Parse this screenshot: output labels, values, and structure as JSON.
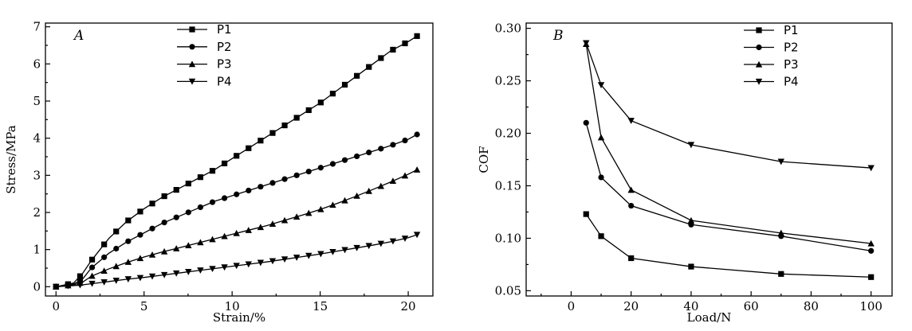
{
  "chart_data": [
    {
      "type": "line",
      "panel": "A",
      "xlabel": "Strain/%",
      "ylabel": "Stress/MPa",
      "xlim": [
        -0.6,
        21.4
      ],
      "ylim": [
        -0.25,
        7.1
      ],
      "xticks": [
        0,
        5,
        10,
        15,
        20
      ],
      "yticks": [
        0,
        1,
        2,
        3,
        4,
        5,
        6,
        7
      ],
      "legend": "top-center",
      "sampled": true,
      "x_range": [
        0,
        20.5
      ],
      "marker_count": 31,
      "series": [
        {
          "name": "P1",
          "marker": "square",
          "x": [
            0,
            1,
            1.5,
            2,
            3,
            4,
            5,
            6,
            7,
            8,
            9,
            10,
            11,
            12,
            13,
            14,
            15,
            16,
            17,
            18,
            19,
            20,
            20.5
          ],
          "y": [
            0,
            0.1,
            0.35,
            0.7,
            1.3,
            1.75,
            2.1,
            2.4,
            2.65,
            2.9,
            3.15,
            3.45,
            3.75,
            4.05,
            4.35,
            4.65,
            4.95,
            5.3,
            5.65,
            6.0,
            6.35,
            6.6,
            6.75
          ]
        },
        {
          "name": "P2",
          "marker": "circle",
          "x": [
            0,
            1,
            1.5,
            2,
            3,
            4,
            5,
            6,
            7,
            8,
            9,
            10,
            11,
            12,
            13,
            14,
            15,
            16,
            17,
            18,
            19,
            20,
            20.5
          ],
          "y": [
            0,
            0.07,
            0.2,
            0.5,
            0.9,
            1.2,
            1.45,
            1.7,
            1.9,
            2.1,
            2.3,
            2.45,
            2.6,
            2.75,
            2.9,
            3.05,
            3.2,
            3.35,
            3.5,
            3.65,
            3.8,
            3.97,
            4.1
          ]
        },
        {
          "name": "P3",
          "marker": "triangle-up",
          "x": [
            0,
            1,
            1.5,
            2,
            3,
            4,
            5,
            6,
            7,
            8,
            9,
            10,
            11,
            12,
            13,
            14,
            15,
            16,
            17,
            18,
            19,
            20,
            20.5
          ],
          "y": [
            0,
            0.05,
            0.12,
            0.28,
            0.48,
            0.65,
            0.8,
            0.93,
            1.05,
            1.17,
            1.29,
            1.41,
            1.53,
            1.65,
            1.79,
            1.93,
            2.08,
            2.25,
            2.43,
            2.62,
            2.82,
            3.03,
            3.15
          ]
        },
        {
          "name": "P4",
          "marker": "triangle-down",
          "x": [
            0,
            1,
            1.5,
            2,
            3,
            4,
            5,
            6,
            7,
            8,
            9,
            10,
            11,
            12,
            13,
            14,
            15,
            16,
            17,
            18,
            19,
            20,
            20.5
          ],
          "y": [
            0,
            0.03,
            0.05,
            0.08,
            0.14,
            0.2,
            0.25,
            0.31,
            0.37,
            0.43,
            0.49,
            0.55,
            0.61,
            0.67,
            0.74,
            0.81,
            0.88,
            0.96,
            1.04,
            1.12,
            1.21,
            1.32,
            1.4
          ]
        }
      ]
    },
    {
      "type": "line",
      "panel": "B",
      "xlabel": "Load/N",
      "ylabel": "COF",
      "xlim": [
        -15,
        107
      ],
      "ylim": [
        0.045,
        0.305
      ],
      "xticks": [
        0,
        20,
        40,
        60,
        80,
        100
      ],
      "yticks": [
        0.05,
        0.1,
        0.15,
        0.2,
        0.25,
        0.3
      ],
      "ytick_labels": [
        "0.05",
        "0.10",
        "0.15",
        "0.20",
        "0.25",
        "0.30"
      ],
      "legend": "top-right",
      "series": [
        {
          "name": "P1",
          "marker": "square",
          "x": [
            5,
            10,
            20,
            40,
            70,
            100
          ],
          "y": [
            0.123,
            0.102,
            0.081,
            0.073,
            0.066,
            0.063
          ]
        },
        {
          "name": "P2",
          "marker": "circle",
          "x": [
            5,
            10,
            20,
            40,
            70,
            100
          ],
          "y": [
            0.21,
            0.158,
            0.131,
            0.113,
            0.102,
            0.088
          ]
        },
        {
          "name": "P3",
          "marker": "triangle-up",
          "x": [
            5,
            10,
            20,
            40,
            70,
            100
          ],
          "y": [
            0.285,
            0.196,
            0.146,
            0.117,
            0.105,
            0.095
          ]
        },
        {
          "name": "P4",
          "marker": "triangle-down",
          "x": [
            5,
            10,
            20,
            40,
            70,
            100
          ],
          "y": [
            0.286,
            0.246,
            0.212,
            0.189,
            0.173,
            0.167
          ]
        }
      ]
    }
  ]
}
